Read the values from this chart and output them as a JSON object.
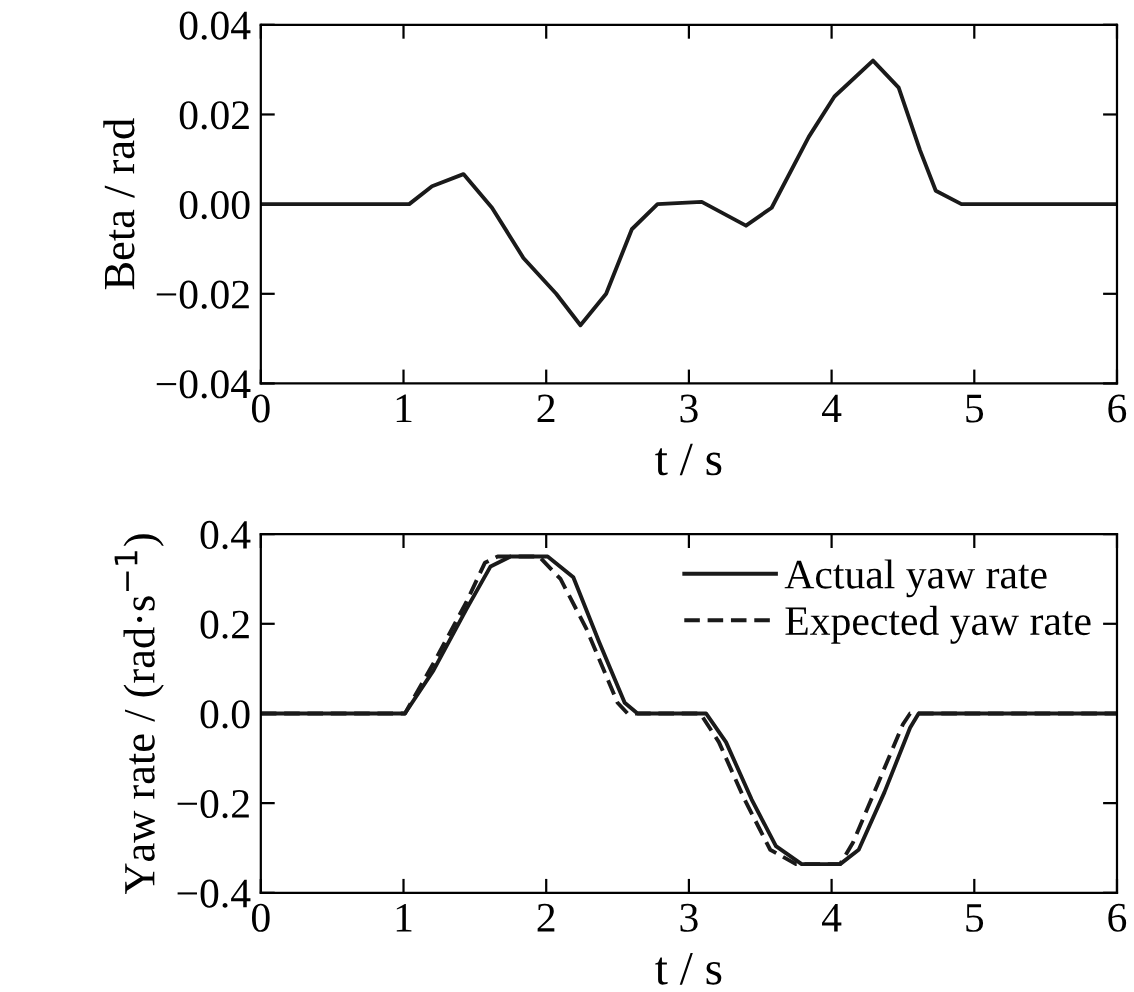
{
  "chart_data": [
    {
      "type": "line",
      "xlabel": "t / s",
      "ylabel": "Beta / rad",
      "xlim": [
        0,
        6
      ],
      "xticks": [
        0,
        1,
        2,
        3,
        4,
        5,
        6
      ],
      "ylim": [
        -0.04,
        0.04
      ],
      "yticks": [
        {
          "value": -0.04,
          "label": "−0.04"
        },
        {
          "value": -0.02,
          "label": "−0.02"
        },
        {
          "value": 0,
          "label": "0.00"
        },
        {
          "value": 0.02,
          "label": "0.02"
        },
        {
          "value": 0.04,
          "label": "0.04"
        }
      ],
      "grid": false,
      "legend": false,
      "line_style": "solid",
      "series": [
        {
          "color": "#1a1a1a",
          "x": [
            0,
            1.04,
            1.2,
            1.42,
            1.62,
            1.84,
            2.07,
            2.24,
            2.42,
            2.6,
            2.78,
            3.09,
            3.4,
            3.58,
            3.84,
            4.02,
            4.29,
            4.47,
            4.62,
            4.73,
            4.91,
            6
          ],
          "values": [
            0,
            0,
            0.004,
            0.0067,
            -0.0008,
            -0.012,
            -0.02,
            -0.027,
            -0.02,
            -0.0056,
            0,
            0.0005,
            -0.0048,
            -0.0008,
            0.015,
            0.024,
            0.032,
            0.026,
            0.012,
            0.003,
            0,
            0
          ]
        }
      ]
    },
    {
      "type": "line",
      "xlabel": "t / s",
      "ylabel": "Yaw rate / (rad·s$^{−1}$)",
      "xlim": [
        0,
        6
      ],
      "xticks": [
        0,
        1,
        2,
        3,
        4,
        5,
        6
      ],
      "ylim": [
        -0.4,
        0.4
      ],
      "yticks": [
        {
          "value": -0.4,
          "label": "−0.4"
        },
        {
          "value": -0.2,
          "label": "−0.2"
        },
        {
          "value": 0,
          "label": "0.0"
        },
        {
          "value": 0.2,
          "label": "0.2"
        },
        {
          "value": 0.4,
          "label": "0.4"
        }
      ],
      "grid": false,
      "legend": "top right",
      "series": [
        {
          "name": "Actual yaw rate",
          "color": "#1a1a1a",
          "line_style": "solid",
          "x": [
            0,
            1.01,
            1.21,
            1.44,
            1.61,
            1.75,
            2.01,
            2.19,
            2.37,
            2.55,
            2.64,
            3.12,
            3.26,
            3.44,
            3.61,
            3.79,
            4.06,
            4.19,
            4.37,
            4.55,
            4.61,
            6
          ],
          "values": [
            0,
            0,
            0.096,
            0.232,
            0.328,
            0.35,
            0.35,
            0.304,
            0.16,
            0.024,
            0,
            0,
            -0.064,
            -0.192,
            -0.296,
            -0.336,
            -0.336,
            -0.304,
            -0.176,
            -0.032,
            0,
            0
          ]
        },
        {
          "name": "Expected yaw rate",
          "color": "#1a1a1a",
          "line_style": "dashed",
          "x": [
            0,
            1.01,
            1.21,
            1.44,
            1.57,
            1.66,
            1.95,
            2.1,
            2.28,
            2.5,
            2.57,
            3.08,
            3.21,
            3.39,
            3.57,
            3.75,
            4.06,
            4.15,
            4.32,
            4.5,
            4.55,
            6
          ],
          "values": [
            0,
            0,
            0.112,
            0.248,
            0.336,
            0.35,
            0.35,
            0.3,
            0.19,
            0.024,
            0,
            0,
            -0.064,
            -0.192,
            -0.304,
            -0.336,
            -0.336,
            -0.288,
            -0.16,
            -0.024,
            0,
            0
          ]
        }
      ]
    }
  ]
}
